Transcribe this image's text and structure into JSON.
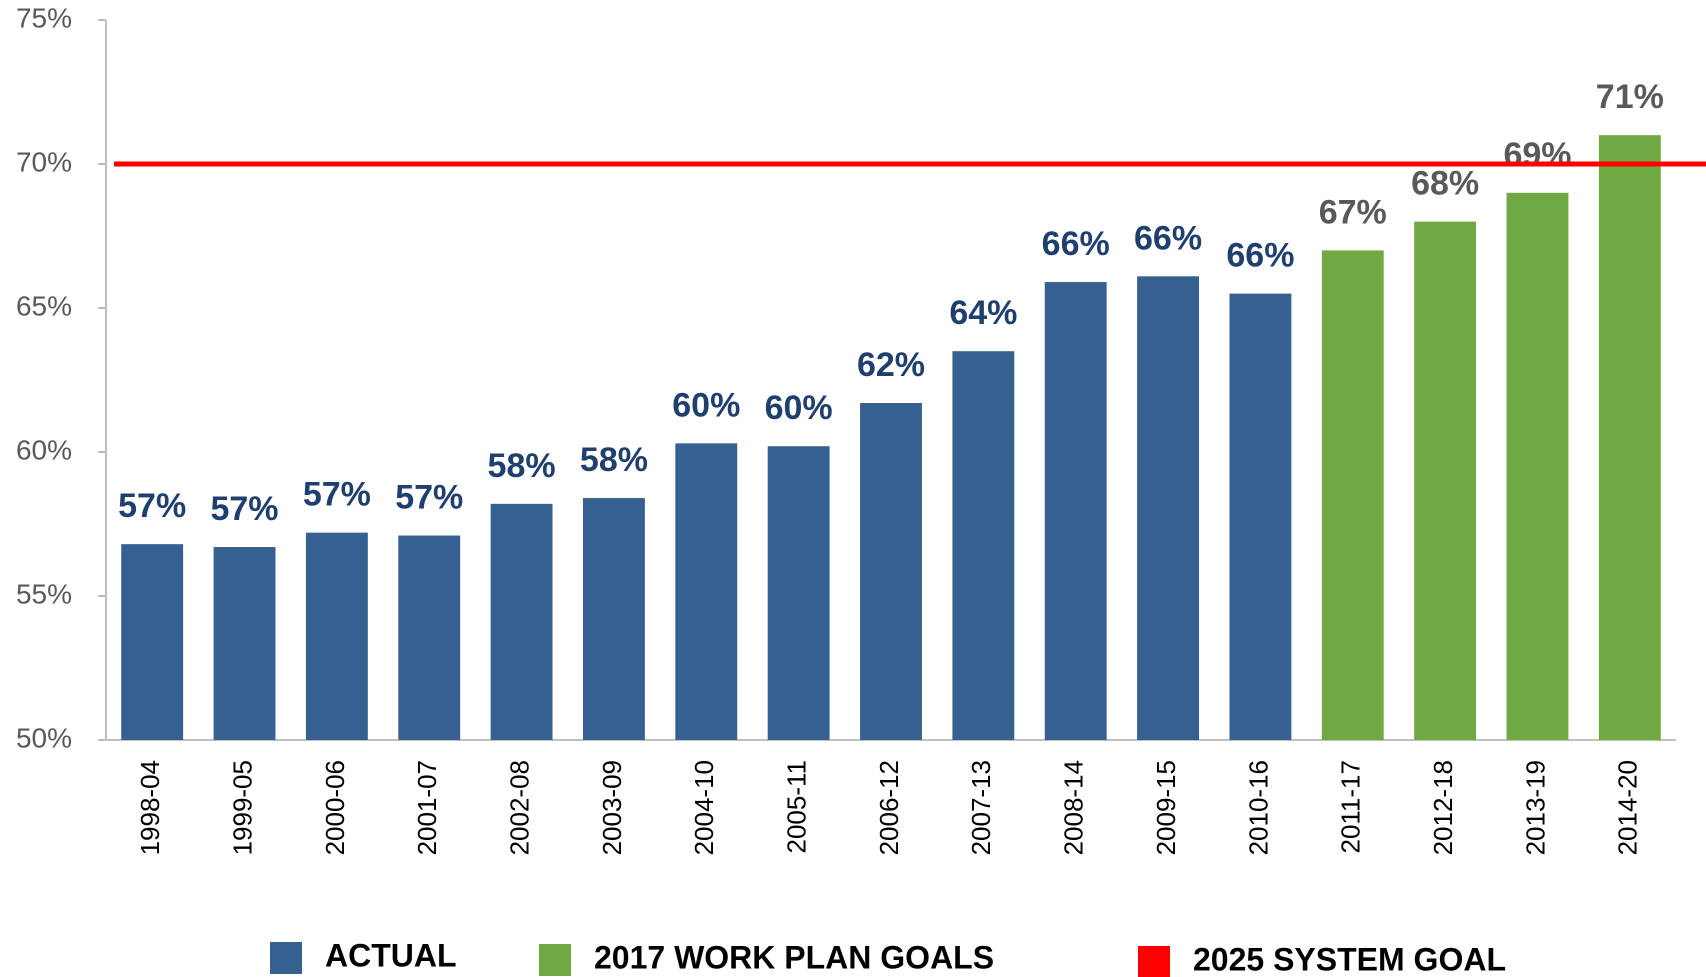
{
  "chart_data": {
    "type": "bar",
    "categories": [
      "1998-04",
      "1999-05",
      "2000-06",
      "2001-07",
      "2002-08",
      "2003-09",
      "2004-10",
      "2005-11",
      "2006-12",
      "2007-13",
      "2008-14",
      "2009-15",
      "2010-16",
      "2011-17",
      "2012-18",
      "2013-19",
      "2014-20"
    ],
    "series": [
      {
        "name": "ACTUAL",
        "color": "#36608f",
        "label_color": "#1f3f6e",
        "values": [
          56.8,
          56.7,
          57.2,
          57.1,
          58.2,
          58.4,
          60.3,
          60.2,
          61.7,
          63.5,
          65.9,
          66.1,
          65.5,
          null,
          null,
          null,
          null
        ],
        "value_labels": [
          "57%",
          "57%",
          "57%",
          "57%",
          "58%",
          "58%",
          "60%",
          "60%",
          "62%",
          "64%",
          "66%",
          "66%",
          "66%",
          null,
          null,
          null,
          null
        ]
      },
      {
        "name": "2017 WORK PLAN GOALS",
        "color": "#70a844",
        "label_color": "#595959",
        "values": [
          null,
          null,
          null,
          null,
          null,
          null,
          null,
          null,
          null,
          null,
          null,
          null,
          null,
          67.0,
          68.0,
          69.0,
          71.0
        ],
        "value_labels": [
          null,
          null,
          null,
          null,
          null,
          null,
          null,
          null,
          null,
          null,
          null,
          null,
          null,
          "67%",
          "68%",
          "69%",
          "71%"
        ]
      }
    ],
    "goal_line": {
      "name": "2025 SYSTEM GOAL",
      "value": 70,
      "color": "#ff0000"
    },
    "ylim": [
      50,
      75
    ],
    "yticks": [
      {
        "value": 50,
        "label": "50%"
      },
      {
        "value": 55,
        "label": "55%"
      },
      {
        "value": 60,
        "label": "60%"
      },
      {
        "value": 65,
        "label": "65%"
      },
      {
        "value": 70,
        "label": "70%"
      },
      {
        "value": 75,
        "label": "75%"
      }
    ],
    "grid": false
  }
}
